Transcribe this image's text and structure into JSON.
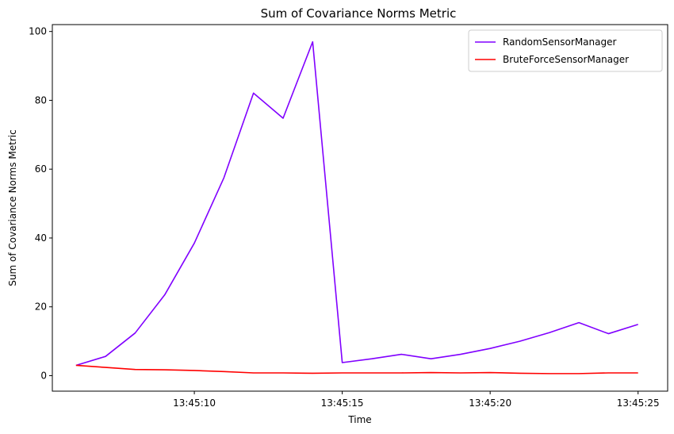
{
  "chart_data": {
    "type": "line",
    "title": "Sum of Covariance Norms Metric",
    "xlabel": "Time",
    "ylabel": "Sum of Covariance Norms Metric",
    "x": [
      "13:45:06",
      "13:45:07",
      "13:45:08",
      "13:45:09",
      "13:45:10",
      "13:45:11",
      "13:45:12",
      "13:45:13",
      "13:45:14",
      "13:45:15",
      "13:45:16",
      "13:45:17",
      "13:45:18",
      "13:45:19",
      "13:45:20",
      "13:45:21",
      "13:45:22",
      "13:45:23",
      "13:45:24",
      "13:45:25"
    ],
    "xlim": [
      "13:45:05.2",
      "13:45:26.0"
    ],
    "xticks": [
      "13:45:10",
      "13:45:15",
      "13:45:20",
      "13:45:25"
    ],
    "ylim": [
      -4.5,
      102
    ],
    "yticks": [
      0,
      20,
      40,
      60,
      80,
      100
    ],
    "grid": false,
    "legend_position": "top-right",
    "series": [
      {
        "name": "RandomSensorManager",
        "color": "#8000ff",
        "values": [
          3.0,
          5.6,
          12.4,
          23.5,
          38.5,
          57.5,
          82.1,
          74.8,
          97.0,
          3.8,
          4.9,
          6.2,
          4.9,
          6.2,
          7.9,
          10.0,
          12.5,
          15.4,
          12.2,
          14.9
        ]
      },
      {
        "name": "BruteForceSensorManager",
        "color": "#ff0000",
        "values": [
          3.0,
          2.4,
          1.8,
          1.7,
          1.5,
          1.2,
          0.8,
          0.8,
          0.7,
          0.8,
          0.8,
          0.8,
          0.9,
          0.8,
          0.9,
          0.7,
          0.6,
          0.6,
          0.8,
          0.8
        ]
      }
    ]
  }
}
